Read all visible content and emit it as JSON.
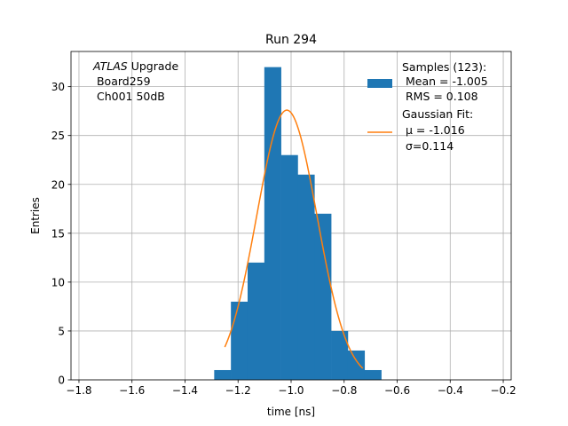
{
  "chart_data": {
    "type": "bar",
    "title": "Run 294",
    "xlabel": "time [ns]",
    "ylabel": "Entries",
    "xlim": [
      -1.83,
      -0.17
    ],
    "ylim": [
      0,
      33.6
    ],
    "grid": true,
    "x_ticks": [
      -1.8,
      -1.6,
      -1.4,
      -1.2,
      -1.0,
      -0.8,
      -0.6,
      -0.4,
      -0.2
    ],
    "x_tick_labels": [
      "−1.8",
      "−1.6",
      "−1.4",
      "−1.2",
      "−1.0",
      "−0.8",
      "−0.6",
      "−0.4",
      "−0.2"
    ],
    "y_ticks": [
      0,
      5,
      10,
      15,
      20,
      25,
      30
    ],
    "y_tick_labels": [
      "0",
      "5",
      "10",
      "15",
      "20",
      "25",
      "30"
    ],
    "histogram": {
      "name": "Samples (123):",
      "color": "#1f77b4",
      "bin_edges": [
        -1.29,
        -1.227,
        -1.164,
        -1.101,
        -1.038,
        -0.975,
        -0.912,
        -0.849,
        -0.786,
        -0.723,
        -0.66
      ],
      "counts": [
        1,
        8,
        12,
        32,
        23,
        21,
        17,
        5,
        3,
        1
      ]
    },
    "fit": {
      "name": "Gaussian Fit:",
      "color": "#ff7f0e",
      "mu": -1.016,
      "sigma": 0.114,
      "amplitude": 27.6,
      "x_range": [
        -1.25,
        -0.73
      ]
    },
    "legend": {
      "position": "top-right",
      "samples_lines": [
        "Samples (123):",
        " Mean = -1.005",
        " RMS = 0.108"
      ],
      "fit_lines": [
        "Gaussian Fit:",
        " μ = -1.016",
        " σ=0.114"
      ]
    },
    "annotation": {
      "italic": "ATLAS",
      "rest": " Upgrade",
      "line2": " Board259",
      "line3": " Ch001 50dB"
    }
  }
}
